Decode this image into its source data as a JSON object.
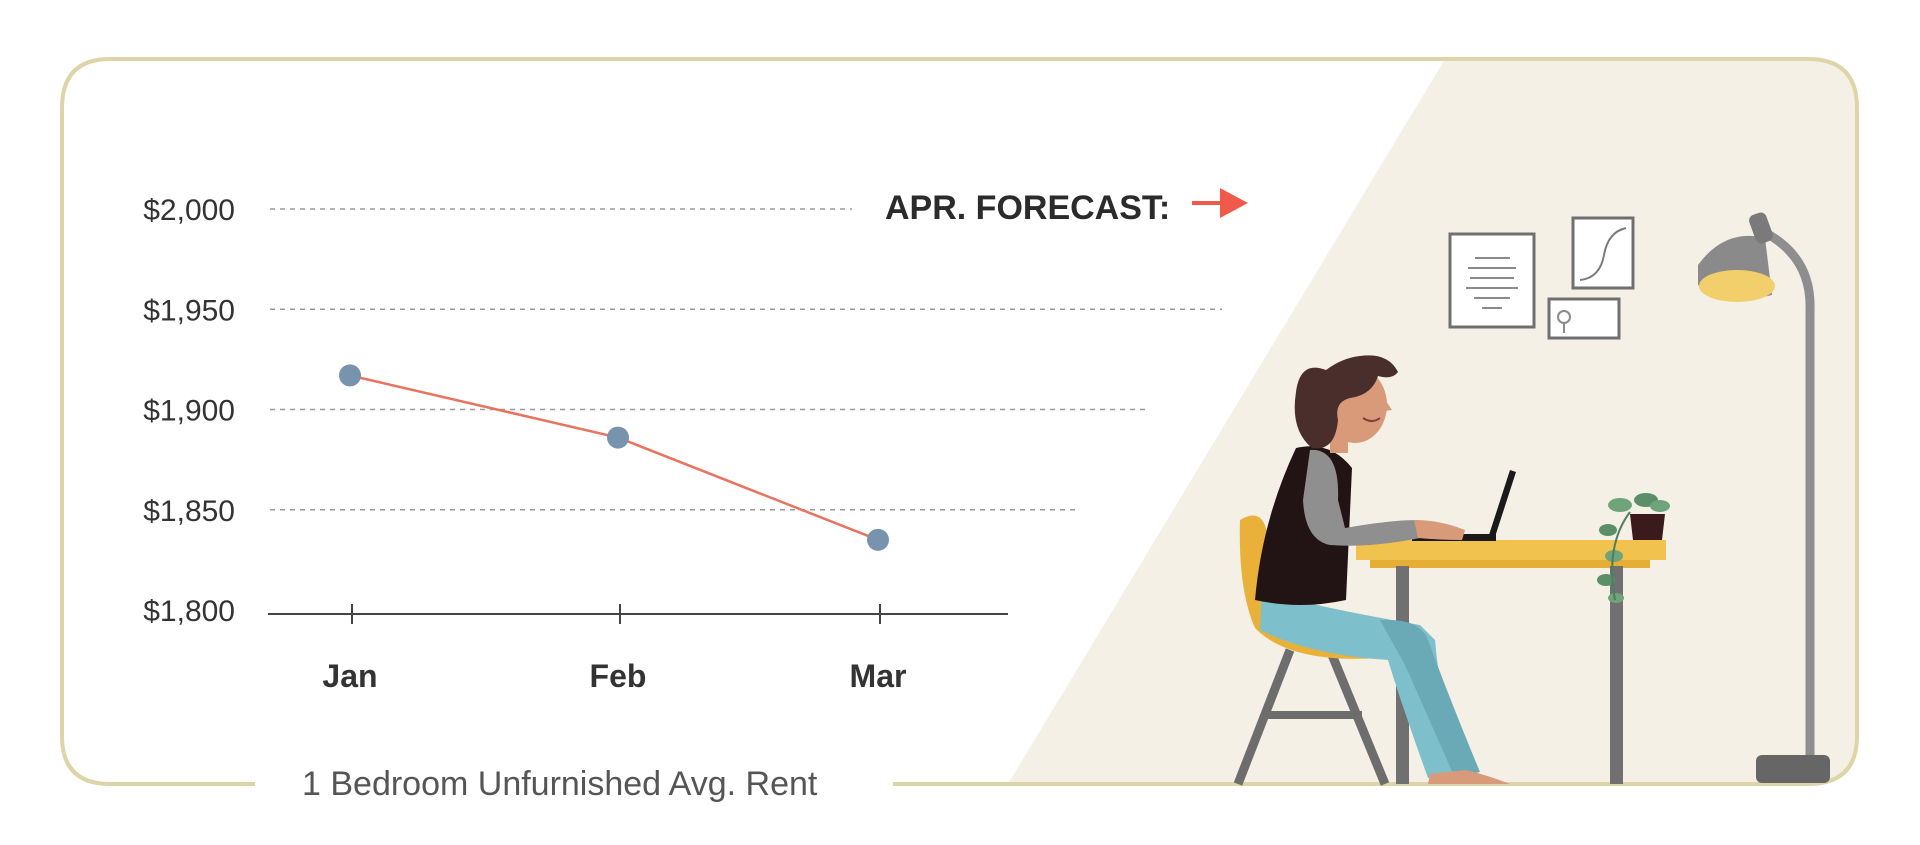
{
  "colors": {
    "frame": "#ddd4a8",
    "line": "#e8735e",
    "point": "#7893ad",
    "arrow": "#ef5a4b",
    "panel": "#f4f0e5"
  },
  "forecast": {
    "label": "APR. FORECAST:",
    "arrow_icon": "right-arrow-icon"
  },
  "caption": "1 Bedroom Unfurnished Avg. Rent",
  "chart_data": {
    "type": "line",
    "title": "",
    "xlabel": "",
    "ylabel": "",
    "categories": [
      "Jan",
      "Feb",
      "Mar"
    ],
    "values": [
      1917,
      1886,
      1835
    ],
    "ylim": [
      1800,
      2000
    ],
    "yticks": [
      2000,
      1950,
      1900,
      1850,
      1800
    ],
    "ytick_labels": [
      "$2,000",
      "$1,950",
      "$1,900",
      "$1,850",
      "$1,800"
    ],
    "grid": true,
    "legend": "none",
    "caption": "1 Bedroom Unfurnished Avg. Rent"
  }
}
